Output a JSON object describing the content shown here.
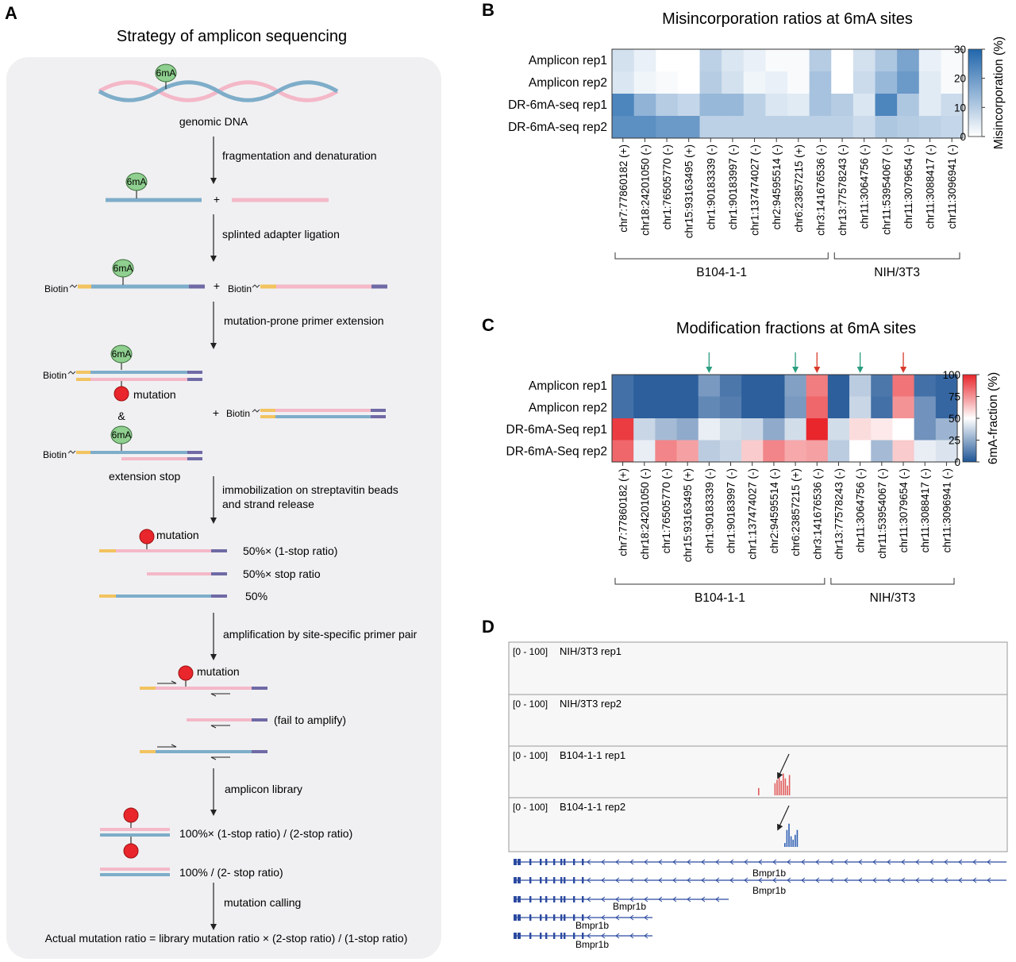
{
  "panel_a": {
    "letter": "A",
    "title": "Strategy of amplicon sequencing",
    "mark_6ma": "6mA",
    "genomic_dna": "genomic DNA",
    "biotin": "Biotin",
    "plus": "+",
    "amp": "&",
    "mutation": "mutation",
    "extension_stop": "extension stop",
    "steps": [
      "fragmentation and denaturation",
      "splinted adapter ligation",
      "mutation-prone primer extension",
      "immobilization on streptavitin beads",
      "and strand release",
      "amplification by site-specific primer pair",
      "amplicon library",
      "mutation calling"
    ],
    "ratio_labels": [
      "50%× (1-stop ratio)",
      "50%× stop ratio",
      "50%"
    ],
    "fail_to_amplify": "(fail to amplify)",
    "library_ratios": [
      "100%× (1-stop ratio) / (2-stop ratio)",
      "100% / (2- stop ratio)"
    ],
    "formula": "Actual mutation ratio = library mutation ratio × (2-stop ratio) / (1-stop ratio)"
  },
  "chart_data": [
    {
      "type": "heatmap",
      "panel": "B",
      "title": "Misincorporation ratios at 6mA sites",
      "rows": [
        "Amplicon rep1",
        "Amplicon rep2",
        "DR-6mA-seq rep1",
        "DR-6mA-seq rep2"
      ],
      "columns": [
        "chr7:77860182 (+)",
        "chr18:24201050 (-)",
        "chr1:76505770 (-)",
        "chr15:93163495 (+)",
        "chr1:90183339 (-)",
        "chr1:90183997 (-)",
        "chr1:137474027 (-)",
        "chr2:94595514 (-)",
        "chr6:23857215 (+)",
        "chr3:141676536 (-)",
        "chr13:77578243 (-)",
        "chr11:3064756 (-)",
        "chr11:53954067 (-)",
        "chr11:3079654 (-)",
        "chr11:3088417 (-)",
        "chr11:3096941 (-)"
      ],
      "values": [
        [
          6,
          3,
          0,
          0,
          9,
          5,
          3,
          1,
          1,
          10,
          0,
          6,
          11,
          18,
          3,
          1
        ],
        [
          5,
          2,
          1,
          0,
          10,
          6,
          2,
          3,
          1,
          12,
          0,
          7,
          14,
          20,
          4,
          1
        ],
        [
          24,
          15,
          10,
          8,
          14,
          14,
          9,
          5,
          4,
          12,
          10,
          5,
          24,
          11,
          4,
          7
        ],
        [
          22,
          22,
          20,
          20,
          9,
          9,
          9,
          9,
          9,
          9,
          9,
          7,
          11,
          10,
          9,
          8
        ]
      ],
      "colorbar": {
        "label": "Misincorporation (%)",
        "ticks": [
          0,
          10,
          20,
          30
        ],
        "range": [
          0,
          30
        ],
        "colors": [
          "#ffffff",
          "#2166ac"
        ]
      },
      "groups": [
        {
          "label": "B104-1-1"
        },
        {
          "label": "NIH/3T3"
        }
      ]
    },
    {
      "type": "heatmap",
      "panel": "C",
      "title": "Modification fractions at 6mA sites",
      "rows": [
        "Amplicon rep1",
        "Amplicon rep2",
        "DR-6mA-Seq rep1",
        "DR-6mA-Seq rep2"
      ],
      "columns": [
        "chr7:77860182 (+)",
        "chr18:24201050 (-)",
        "chr1:76505770 (-)",
        "chr15:93163495 (+)",
        "chr1:90183339 (-)",
        "chr1:90183997 (-)",
        "chr1:137474027 (-)",
        "chr2:94595514 (-)",
        "chr6:23857215 (+)",
        "chr3:141676536 (-)",
        "chr13:77578243 (-)",
        "chr11:3064756 (-)",
        "chr11:53954067 (-)",
        "chr11:3079654 (-)",
        "chr11:3088417 (-)",
        "chr11:3096941 (-)"
      ],
      "values": [
        [
          8,
          3,
          3,
          3,
          20,
          10,
          3,
          3,
          22,
          80,
          3,
          35,
          10,
          82,
          8,
          5
        ],
        [
          8,
          3,
          3,
          3,
          15,
          12,
          3,
          3,
          20,
          85,
          3,
          38,
          8,
          75,
          18,
          5
        ],
        [
          95,
          38,
          30,
          25,
          45,
          40,
          38,
          25,
          40,
          100,
          40,
          58,
          55,
          50,
          18,
          28
        ],
        [
          85,
          45,
          78,
          72,
          35,
          38,
          62,
          78,
          70,
          72,
          35,
          50,
          30,
          62,
          45,
          42
        ]
      ],
      "arrows": [
        {
          "column": 4,
          "color": "#2a9d7f"
        },
        {
          "column": 8,
          "color": "#2a9d7f"
        },
        {
          "column": 9,
          "color": "#d73a2a"
        },
        {
          "column": 11,
          "color": "#2a9d7f"
        },
        {
          "column": 13,
          "color": "#d73a2a"
        }
      ],
      "colorbar": {
        "label": "6mA-fraction (%)",
        "ticks": [
          0,
          25,
          50,
          75,
          100
        ],
        "range": [
          0,
          100
        ],
        "colors": [
          "#1f5596",
          "#ffffff",
          "#e8262c"
        ]
      },
      "groups": [
        {
          "label": "B104-1-1"
        },
        {
          "label": "NIH/3T3"
        }
      ]
    },
    {
      "type": "bar",
      "panel": "D",
      "tracks": [
        {
          "range_label": "[0 - 100]",
          "name": "NIH/3T3 rep1",
          "color": "#e15b5b",
          "values": []
        },
        {
          "range_label": "[0 - 100]",
          "name": "NIH/3T3 rep2",
          "color": "#e15b5b",
          "values": []
        },
        {
          "range_label": "[0 - 100]",
          "name": "B104-1-1 rep1",
          "color": "#e15b5b",
          "values": [
            15,
            25,
            32,
            40,
            30,
            45,
            35,
            20,
            42
          ]
        },
        {
          "range_label": "[0 - 100]",
          "name": "B104-1-1 rep2",
          "color": "#2f5fb3",
          "values": [
            8,
            35,
            48,
            22,
            15,
            25,
            35
          ]
        }
      ],
      "gene": "Bmpr1b",
      "transcripts": [
        "Bmpr1b",
        "Bmpr1b",
        "Bmpr1b",
        "Bmpr1b",
        "Bmpr1b"
      ]
    }
  ],
  "panel_letters": {
    "b": "B",
    "c": "C",
    "d": "D"
  }
}
